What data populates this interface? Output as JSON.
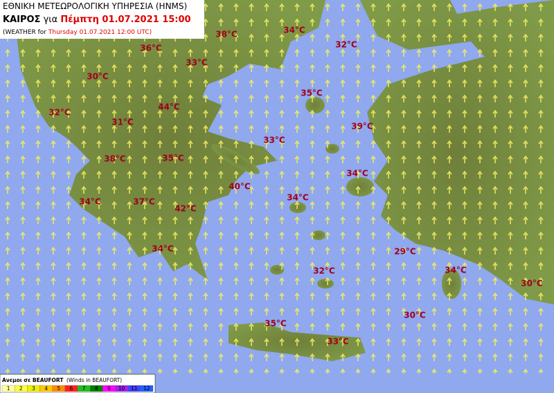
{
  "header": {
    "agency": "ΕΘΝΙΚΗ ΜΕΤΕΩΡΟΛΟΓΙΚΗ ΥΠΗΡΕΣΙΑ (HNMS)",
    "weather_label": "ΚΑΙΡΟΣ",
    "for_label": "για",
    "date_local": "Πέμπτη 01.07.2021 15:00",
    "weather_en": "(WEATHER for",
    "date_utc": "Thursday 01.07.2021 12:00 UTC)"
  },
  "temperatures": [
    "38°C",
    "34°C",
    "32°C",
    "36°C",
    "33°C",
    "30°C",
    "35°C",
    "44°C",
    "32°C",
    "31°C",
    "39°C",
    "33°C",
    "38°C",
    "35°C",
    "34°C",
    "40°C",
    "34°C",
    "37°C",
    "34°C",
    "42°C",
    "34°C",
    "29°C",
    "32°C",
    "34°C",
    "30°C",
    "30°C",
    "35°C",
    "33°C"
  ],
  "legend": {
    "title": "Ανεμοι σε BEAUFORT",
    "subtitle": "(Winds in BEAUFORT)",
    "scale": [
      {
        "label": "1",
        "color": "#ffffa0"
      },
      {
        "label": "2",
        "color": "#ffff40"
      },
      {
        "label": "3",
        "color": "#f0f000"
      },
      {
        "label": "4",
        "color": "#ffc800"
      },
      {
        "label": "5",
        "color": "#ff8c00"
      },
      {
        "label": "6",
        "color": "#ff2020"
      },
      {
        "label": "7",
        "color": "#20c020"
      },
      {
        "label": "8",
        "color": "#008000"
      },
      {
        "label": "9",
        "color": "#ff00ff"
      },
      {
        "label": "10",
        "color": "#a020f0"
      },
      {
        "label": "11",
        "color": "#4040ff"
      },
      {
        "label": "12",
        "color": "#2060ff"
      }
    ]
  }
}
